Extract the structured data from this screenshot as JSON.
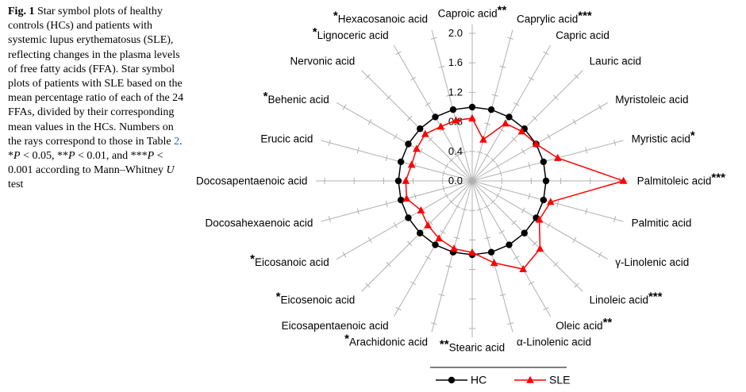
{
  "colors": {
    "hc": "#000000",
    "sle": "#ff0000",
    "ray": "#b0b0b0",
    "link": "#2368b5"
  },
  "figure_caption": {
    "parts": [
      {
        "t": "Fig. 1",
        "bold": true
      },
      {
        "t": "  Star symbol plots of healthy controls (HCs) and patients with systemic lupus erythematosus (SLE), reflecting changes in the plasma levels of free fatty acids (FFA). Star symbol plots of patients with SLE based on the mean percentage ratio of each of the 24 FFAs, divided by their corresponding mean values in the HCs. Numbers on the rays correspond to those in Table "
      },
      {
        "t": "2",
        "link": true
      },
      {
        "t": ". *"
      },
      {
        "t": "P",
        "italic": true
      },
      {
        "t": " < 0.05, **"
      },
      {
        "t": "P",
        "italic": true
      },
      {
        "t": " < 0.01, and ***"
      },
      {
        "t": "P",
        "italic": true
      },
      {
        "t": " < 0.001 according to Mann–Whitney "
      },
      {
        "t": "U",
        "italic": true
      },
      {
        "t": " test"
      }
    ]
  },
  "chart_data": {
    "type": "radar",
    "title": "",
    "axis": {
      "min": 0.0,
      "max": 2.0,
      "tick_step": 0.4,
      "tick_labels": [
        "0.0",
        "0.4",
        "0.8",
        "1.2",
        "1.6",
        "2.0"
      ]
    },
    "categories": [
      "Caproic acid",
      "Caprylic acid",
      "Capric acid",
      "Lauric acid",
      "Myristoleic acid",
      "Myristic acid",
      "Palmitoleic acid",
      "Palmitic acid",
      "γ-Linolenic acid",
      "Linoleic acid",
      "Oleic acid",
      "α-Linolenic acid",
      "Stearic acid",
      "Arachidonic acid",
      "Eicosapentaenoic acid",
      "Eicosenoic acid",
      "Eicosanoic acid",
      "Docosahexaenoic acid",
      "Docosapentaenoic acid",
      "Erucic acid",
      "Behenic acid",
      "Nervonic acid",
      "Lignoceric acid",
      "Hexacosanoic acid"
    ],
    "significance": [
      "**",
      "***",
      "",
      "",
      "",
      "*",
      "***",
      "",
      "",
      "***",
      "**",
      "",
      "**",
      "*",
      "",
      "*",
      "*",
      "",
      "",
      "",
      "*",
      "",
      "*",
      "*"
    ],
    "star_position": [
      "after",
      "after",
      "",
      "",
      "",
      "after",
      "after",
      "",
      "",
      "after",
      "after",
      "",
      "before",
      "before",
      "",
      "before",
      "before",
      "",
      "",
      "",
      "before",
      "",
      "before",
      "before"
    ],
    "series": [
      {
        "name": "HC",
        "marker": "circle",
        "color": "#000000",
        "values": [
          1.0,
          1.0,
          1.0,
          1.0,
          1.0,
          1.0,
          1.0,
          1.0,
          1.0,
          1.0,
          1.0,
          1.0,
          1.0,
          1.0,
          1.0,
          1.0,
          1.0,
          1.0,
          1.0,
          1.0,
          1.0,
          1.0,
          1.0,
          1.0
        ]
      },
      {
        "name": "SLE",
        "marker": "triangle",
        "color": "#ff0000",
        "values": [
          0.85,
          0.58,
          0.9,
          0.95,
          1.0,
          1.2,
          2.05,
          1.1,
          1.05,
          1.3,
          1.38,
          1.15,
          0.97,
          0.95,
          0.9,
          0.85,
          0.8,
          0.92,
          0.9,
          0.85,
          0.87,
          0.9,
          0.85,
          0.85
        ]
      }
    ],
    "legend_position": "bottom"
  },
  "legend": {
    "items": [
      {
        "label": "HC",
        "marker": "circle",
        "color": "#000000"
      },
      {
        "label": "SLE",
        "marker": "triangle",
        "color": "#ff0000"
      }
    ]
  }
}
